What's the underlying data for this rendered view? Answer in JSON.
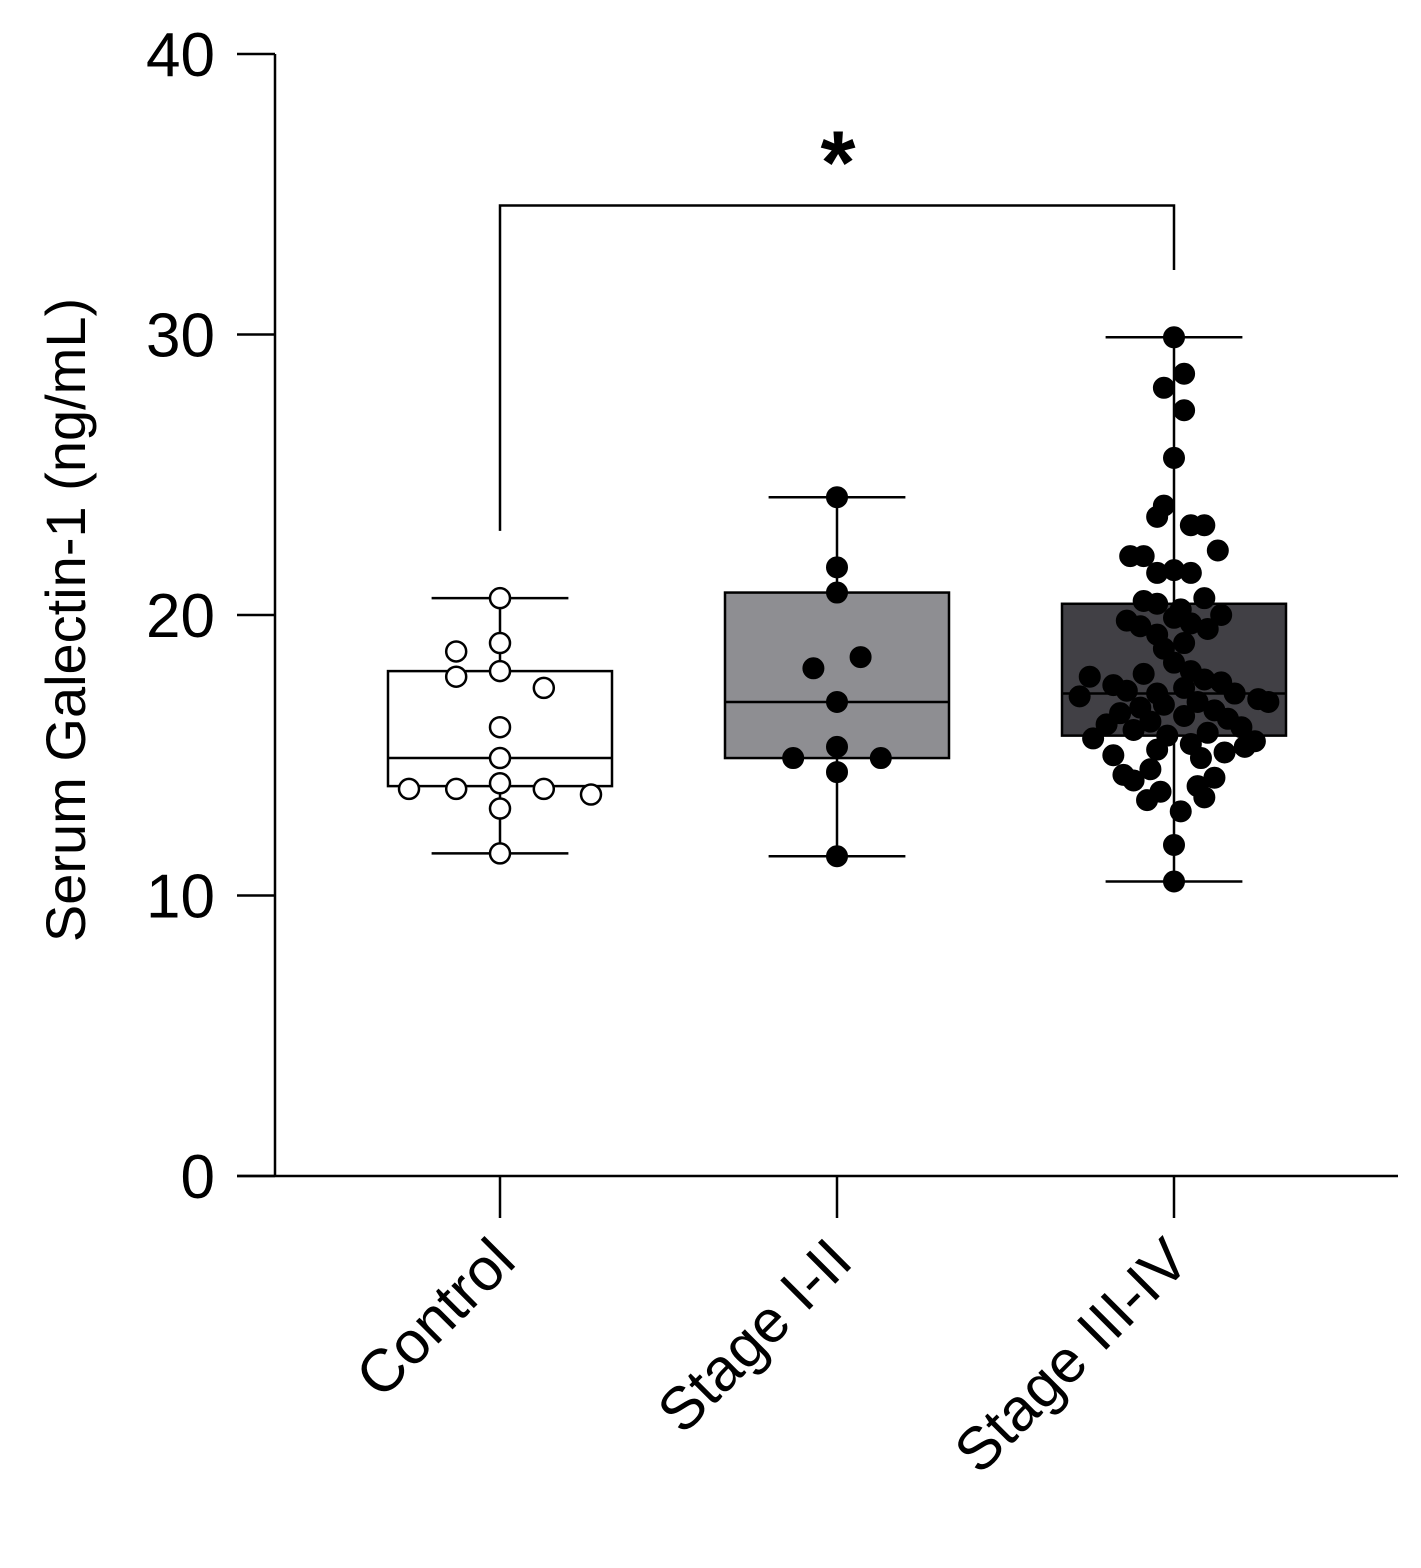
{
  "chart_data": {
    "type": "box",
    "title": "",
    "xlabel": "",
    "ylabel": "Serum Galectin-1 (ng/mL)",
    "ylim": [
      0,
      40
    ],
    "yticks": [
      "0",
      "10",
      "20",
      "30",
      "40"
    ],
    "grid": false,
    "categories": [
      "Control",
      "Stage I-II",
      "Stage III-IV"
    ],
    "boxes": [
      {
        "category": "Control",
        "min": 11.5,
        "q1": 13.9,
        "median": 14.9,
        "q3": 18.0,
        "max": 20.6,
        "fill": "#ffffff",
        "marker": "open"
      },
      {
        "category": "Stage I-II",
        "min": 11.4,
        "q1": 14.9,
        "median": 16.9,
        "q3": 20.8,
        "max": 24.2,
        "fill": "#8e8e92",
        "marker": "filled"
      },
      {
        "category": "Stage III-IV",
        "min": 10.5,
        "q1": 15.7,
        "median": 17.2,
        "q3": 20.4,
        "max": 29.9,
        "fill": "#414045",
        "marker": "filled"
      }
    ],
    "points": [
      {
        "category": "Control",
        "values": [
          {
            "y": 20.6,
            "jitter": 0
          },
          {
            "y": 18.7,
            "jitter": -0.13
          },
          {
            "y": 19.0,
            "jitter": 0
          },
          {
            "y": 17.8,
            "jitter": -0.13
          },
          {
            "y": 18.0,
            "jitter": 0
          },
          {
            "y": 17.4,
            "jitter": 0.13
          },
          {
            "y": 16.0,
            "jitter": 0
          },
          {
            "y": 14.9,
            "jitter": 0
          },
          {
            "y": 14.0,
            "jitter": 0
          },
          {
            "y": 13.8,
            "jitter": -0.27
          },
          {
            "y": 13.8,
            "jitter": -0.13
          },
          {
            "y": 13.8,
            "jitter": 0.13
          },
          {
            "y": 13.6,
            "jitter": 0.27
          },
          {
            "y": 13.1,
            "jitter": 0
          },
          {
            "y": 11.5,
            "jitter": 0
          }
        ]
      },
      {
        "category": "Stage I-II",
        "values": [
          {
            "y": 24.2,
            "jitter": 0
          },
          {
            "y": 21.7,
            "jitter": 0
          },
          {
            "y": 20.8,
            "jitter": 0
          },
          {
            "y": 18.5,
            "jitter": 0.07
          },
          {
            "y": 18.1,
            "jitter": -0.07
          },
          {
            "y": 16.9,
            "jitter": 0
          },
          {
            "y": 15.3,
            "jitter": 0
          },
          {
            "y": 14.9,
            "jitter": -0.13
          },
          {
            "y": 14.9,
            "jitter": 0.13
          },
          {
            "y": 14.4,
            "jitter": 0
          },
          {
            "y": 11.4,
            "jitter": 0
          }
        ]
      },
      {
        "category": "Stage III-IV",
        "values": [
          {
            "y": 29.9,
            "jitter": 0
          },
          {
            "y": 28.6,
            "jitter": 0.03
          },
          {
            "y": 28.1,
            "jitter": -0.03
          },
          {
            "y": 27.3,
            "jitter": 0.03
          },
          {
            "y": 25.6,
            "jitter": 0
          },
          {
            "y": 23.9,
            "jitter": -0.03
          },
          {
            "y": 23.5,
            "jitter": -0.05
          },
          {
            "y": 23.2,
            "jitter": 0.05
          },
          {
            "y": 23.2,
            "jitter": 0.09
          },
          {
            "y": 22.3,
            "jitter": 0.13
          },
          {
            "y": 22.1,
            "jitter": -0.09
          },
          {
            "y": 22.1,
            "jitter": -0.13
          },
          {
            "y": 21.6,
            "jitter": 0
          },
          {
            "y": 21.5,
            "jitter": -0.05
          },
          {
            "y": 21.5,
            "jitter": 0.05
          },
          {
            "y": 20.6,
            "jitter": 0.09
          },
          {
            "y": 20.5,
            "jitter": -0.09
          },
          {
            "y": 20.4,
            "jitter": -0.05
          },
          {
            "y": 20.2,
            "jitter": 0.02
          },
          {
            "y": 20.0,
            "jitter": 0.14
          },
          {
            "y": 19.9,
            "jitter": 0
          },
          {
            "y": 19.8,
            "jitter": -0.14
          },
          {
            "y": 19.7,
            "jitter": 0.05
          },
          {
            "y": 19.6,
            "jitter": -0.1
          },
          {
            "y": 19.5,
            "jitter": 0.1
          },
          {
            "y": 19.3,
            "jitter": -0.05
          },
          {
            "y": 19.0,
            "jitter": 0.03
          },
          {
            "y": 18.8,
            "jitter": -0.03
          },
          {
            "y": 18.3,
            "jitter": 0
          },
          {
            "y": 18.0,
            "jitter": 0.05
          },
          {
            "y": 17.9,
            "jitter": -0.09
          },
          {
            "y": 17.8,
            "jitter": -0.25
          },
          {
            "y": 17.7,
            "jitter": 0.09
          },
          {
            "y": 17.6,
            "jitter": 0.14
          },
          {
            "y": 17.5,
            "jitter": -0.18
          },
          {
            "y": 17.4,
            "jitter": 0.03
          },
          {
            "y": 17.3,
            "jitter": -0.14
          },
          {
            "y": 17.2,
            "jitter": -0.05
          },
          {
            "y": 17.2,
            "jitter": 0.18
          },
          {
            "y": 17.1,
            "jitter": -0.28
          },
          {
            "y": 17.0,
            "jitter": 0.25
          },
          {
            "y": 16.9,
            "jitter": 0.28
          },
          {
            "y": 16.9,
            "jitter": 0.07
          },
          {
            "y": 16.8,
            "jitter": -0.03
          },
          {
            "y": 16.7,
            "jitter": -0.1
          },
          {
            "y": 16.6,
            "jitter": 0.12
          },
          {
            "y": 16.5,
            "jitter": -0.16
          },
          {
            "y": 16.4,
            "jitter": 0.03
          },
          {
            "y": 16.3,
            "jitter": 0.16
          },
          {
            "y": 16.2,
            "jitter": -0.07
          },
          {
            "y": 16.1,
            "jitter": -0.2
          },
          {
            "y": 16.0,
            "jitter": 0.2
          },
          {
            "y": 15.9,
            "jitter": -0.12
          },
          {
            "y": 15.8,
            "jitter": 0.1
          },
          {
            "y": 15.7,
            "jitter": -0.02
          },
          {
            "y": 15.6,
            "jitter": -0.24
          },
          {
            "y": 15.5,
            "jitter": 0.24
          },
          {
            "y": 15.4,
            "jitter": 0.05
          },
          {
            "y": 15.3,
            "jitter": 0.21
          },
          {
            "y": 15.2,
            "jitter": -0.05
          },
          {
            "y": 15.1,
            "jitter": 0.15
          },
          {
            "y": 15.0,
            "jitter": -0.18
          },
          {
            "y": 14.9,
            "jitter": 0.08
          },
          {
            "y": 14.5,
            "jitter": -0.07
          },
          {
            "y": 14.3,
            "jitter": -0.15
          },
          {
            "y": 14.2,
            "jitter": 0.12
          },
          {
            "y": 14.1,
            "jitter": -0.12
          },
          {
            "y": 13.9,
            "jitter": 0.07
          },
          {
            "y": 13.7,
            "jitter": -0.04
          },
          {
            "y": 13.5,
            "jitter": 0.09
          },
          {
            "y": 13.4,
            "jitter": -0.08
          },
          {
            "y": 13.0,
            "jitter": 0.02
          },
          {
            "y": 11.8,
            "jitter": 0
          },
          {
            "y": 10.5,
            "jitter": 0
          }
        ]
      }
    ],
    "annotations": [
      {
        "text": "*",
        "from": "Control",
        "to": "Stage III-IV",
        "bracket_y": 34.6,
        "left_drop_to": 23.0,
        "right_drop_to": 32.3
      }
    ]
  }
}
